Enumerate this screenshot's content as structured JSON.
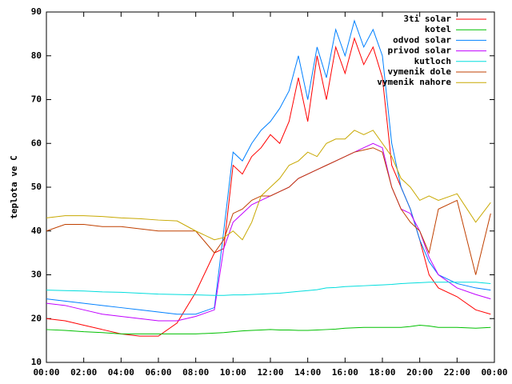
{
  "chart_data": {
    "type": "line",
    "ylabel": "teplota ve C",
    "x": [
      0,
      1,
      2,
      3,
      4,
      5,
      6,
      7,
      8,
      9,
      9.5,
      10,
      10.5,
      11,
      11.5,
      12,
      12.5,
      13,
      13.5,
      14,
      14.5,
      15,
      15.5,
      16,
      16.5,
      17,
      17.5,
      18,
      18.5,
      19,
      19.5,
      20,
      20.5,
      21,
      22,
      23,
      23.8
    ],
    "series": [
      {
        "name": "3ti solar",
        "color": "#ff0000",
        "values": [
          20,
          19.5,
          18.5,
          17.5,
          16.5,
          16,
          16,
          19,
          26,
          35,
          36,
          55,
          53,
          57,
          59,
          62,
          60,
          65,
          75,
          65,
          80,
          70,
          82,
          76,
          84,
          78,
          82,
          75,
          55,
          50,
          45,
          38,
          30,
          27,
          25,
          22,
          21
        ]
      },
      {
        "name": "kotel",
        "color": "#00c000",
        "values": [
          17.5,
          17.3,
          17,
          16.8,
          16.5,
          16.5,
          16.5,
          16.5,
          16.5,
          16.7,
          16.8,
          17,
          17.2,
          17.3,
          17.4,
          17.5,
          17.4,
          17.4,
          17.3,
          17.3,
          17.4,
          17.5,
          17.6,
          17.8,
          17.9,
          18,
          18,
          18,
          18,
          18,
          18.2,
          18.5,
          18.3,
          18,
          18,
          17.8,
          18
        ]
      },
      {
        "name": "odvod solar",
        "color": "#0080ff",
        "values": [
          24.5,
          24,
          23.5,
          23,
          22.5,
          22,
          21.5,
          21,
          21,
          22.5,
          40,
          58,
          56,
          60,
          63,
          65,
          68,
          72,
          80,
          70,
          82,
          75,
          86,
          80,
          88,
          82,
          86,
          80,
          60,
          50,
          45,
          38,
          33,
          30,
          28,
          27,
          26.5
        ]
      },
      {
        "name": "privod solar",
        "color": "#c000ff",
        "values": [
          23.5,
          23,
          22,
          21,
          20.5,
          20,
          19.5,
          19.5,
          20.5,
          22,
          36,
          42,
          44,
          46,
          47,
          48,
          49,
          50,
          52,
          53,
          54,
          55,
          56,
          57,
          58,
          59,
          60,
          59,
          50,
          45,
          44,
          40,
          34,
          30,
          27,
          25.5,
          24.5
        ]
      },
      {
        "name": "kutloch",
        "color": "#00dddd",
        "values": [
          26.5,
          26.4,
          26.3,
          26.1,
          26,
          25.8,
          25.6,
          25.5,
          25.4,
          25.3,
          25.3,
          25.4,
          25.4,
          25.5,
          25.6,
          25.7,
          25.8,
          26,
          26.2,
          26.4,
          26.6,
          27,
          27.1,
          27.3,
          27.4,
          27.5,
          27.6,
          27.7,
          27.8,
          28,
          28.1,
          28.2,
          28.3,
          28.3,
          28.3,
          28.3,
          28
        ]
      },
      {
        "name": "vymenik dole",
        "color": "#c04000",
        "values": [
          40,
          41.5,
          41.5,
          41,
          41,
          40.5,
          40,
          40,
          40,
          35,
          38,
          44,
          45,
          47,
          48,
          48,
          49,
          50,
          52,
          53,
          54,
          55,
          56,
          57,
          58,
          58.5,
          59,
          58,
          50,
          45,
          42,
          40,
          35,
          45,
          47,
          30,
          44
        ]
      },
      {
        "name": "vymenik nahore",
        "color": "#c8a800",
        "values": [
          43,
          43.5,
          43.5,
          43.3,
          43,
          42.8,
          42.5,
          42.3,
          40,
          38,
          38.5,
          40,
          38,
          42,
          48,
          50,
          52,
          55,
          56,
          58,
          57,
          60,
          61,
          61,
          63,
          62,
          63,
          60,
          57,
          52,
          50,
          47,
          48,
          47,
          48.5,
          42,
          46.5
        ]
      }
    ],
    "xlim": [
      0,
      24
    ],
    "xticks": [
      {
        "value": 0,
        "label": "00:00"
      },
      {
        "value": 2,
        "label": "02:00"
      },
      {
        "value": 4,
        "label": "04:00"
      },
      {
        "value": 6,
        "label": "06:00"
      },
      {
        "value": 8,
        "label": "08:00"
      },
      {
        "value": 10,
        "label": "10:00"
      },
      {
        "value": 12,
        "label": "12:00"
      },
      {
        "value": 14,
        "label": "14:00"
      },
      {
        "value": 16,
        "label": "16:00"
      },
      {
        "value": 18,
        "label": "18:00"
      },
      {
        "value": 20,
        "label": "20:00"
      },
      {
        "value": 22,
        "label": "22:00"
      },
      {
        "value": 24,
        "label": "00:00"
      }
    ],
    "ylim": [
      10,
      90
    ],
    "yticks": [
      10,
      20,
      30,
      40,
      50,
      60,
      70,
      80,
      90
    ],
    "legend": "top-right"
  }
}
